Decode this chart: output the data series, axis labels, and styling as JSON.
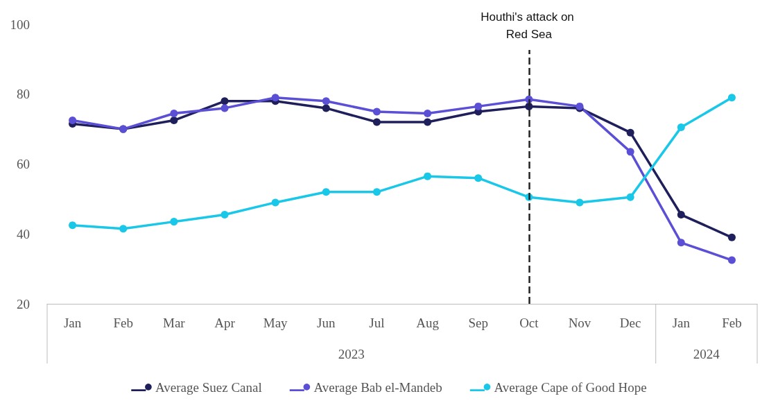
{
  "chart_data": {
    "type": "line",
    "categories": [
      "Jan",
      "Feb",
      "Mar",
      "Apr",
      "May",
      "Jun",
      "Jul",
      "Aug",
      "Sep",
      "Oct",
      "Nov",
      "Dec",
      "Jan",
      "Feb"
    ],
    "annotations": [
      "2023",
      "2024"
    ],
    "series": [
      {
        "name": "Average Suez Canal",
        "color": "#1f1f5c",
        "values": [
          71.5,
          70,
          72.5,
          78,
          78,
          76,
          72,
          72,
          75,
          76.5,
          76,
          69,
          45.5,
          39
        ]
      },
      {
        "name": "Average Bab el-Mandeb",
        "color": "#5b4fd6",
        "values": [
          72.5,
          70,
          74.5,
          76,
          79,
          78,
          75,
          74.5,
          76.5,
          78.5,
          76.5,
          63.5,
          37.5,
          32.5
        ]
      },
      {
        "name": "Average Cape of Good Hope",
        "color": "#19c7e8",
        "values": [
          42.5,
          41.5,
          43.5,
          45.5,
          49,
          52,
          52,
          56.5,
          56,
          50.5,
          49,
          50.5,
          70.5,
          79
        ]
      }
    ],
    "ylim": [
      20,
      100
    ],
    "yticks": [
      20,
      40,
      60,
      80,
      100
    ],
    "grid": false,
    "legend": "bottom",
    "marker": "circle",
    "line_style": "solid",
    "ref_lines": [
      {
        "axis": "x",
        "value": "Oct",
        "label": "Houthi's attack on Red Sea",
        "color": "#222222",
        "line_style": "dashed"
      }
    ]
  }
}
